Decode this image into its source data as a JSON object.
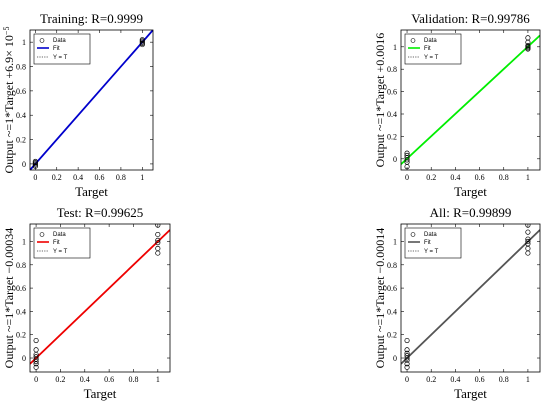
{
  "chart_data": [
    {
      "type": "scatter",
      "title": "Training: R=0.9999",
      "ylabel": "Output ~=1*Target +6.9× 10",
      "ylabel_sup": "−5",
      "xlabel": "Target",
      "xlim": [
        -0.05,
        1.1
      ],
      "ylim": [
        -0.05,
        1.1
      ],
      "xticks": [
        "0",
        "0.2",
        "0.4",
        "0.6",
        "0.8",
        "1"
      ],
      "yticks": [
        "0",
        "0.2",
        "0.4",
        "0.6",
        "0.8",
        "1"
      ],
      "fit_color": "#0000cc",
      "fit": {
        "slope": 1,
        "intercept": 6.9e-05
      },
      "data_points": [
        [
          0,
          0
        ],
        [
          0,
          0.01
        ],
        [
          0,
          -0.01
        ],
        [
          0,
          0.02
        ],
        [
          0,
          -0.02
        ],
        [
          1,
          1
        ],
        [
          1,
          1.01
        ],
        [
          1,
          0.99
        ],
        [
          1,
          1.02
        ],
        [
          1,
          0.98
        ]
      ],
      "legend": [
        "Data",
        "Fit",
        "Y = T"
      ]
    },
    {
      "type": "scatter",
      "title": "Validation: R=0.99786",
      "ylabel": "Output ~=1*Target +0.0016",
      "xlabel": "Target",
      "xlim": [
        -0.05,
        1.1
      ],
      "ylim": [
        -0.1,
        1.15
      ],
      "xticks": [
        "0",
        "0.2",
        "0.4",
        "0.6",
        "0.8",
        "1"
      ],
      "yticks": [
        "0",
        "0.2",
        "0.4",
        "0.6",
        "0.8",
        "1"
      ],
      "fit_color": "#00ee00",
      "fit": {
        "slope": 1,
        "intercept": 0.0016
      },
      "data_points": [
        [
          0,
          0.05
        ],
        [
          0,
          0.03
        ],
        [
          0,
          0.01
        ],
        [
          0,
          -0.01
        ],
        [
          0,
          -0.03
        ],
        [
          0,
          -0.07
        ],
        [
          1,
          1.08
        ],
        [
          1,
          1.04
        ],
        [
          1,
          1.01
        ],
        [
          1,
          1.0
        ],
        [
          1,
          0.99
        ],
        [
          1,
          0.98
        ]
      ],
      "legend": [
        "Data",
        "Fit",
        "Y = T"
      ]
    },
    {
      "type": "scatter",
      "title": "Test: R=0.99625",
      "ylabel": "Output ~=1*Target −0.00034",
      "xlabel": "Target",
      "xlim": [
        -0.05,
        1.1
      ],
      "ylim": [
        -0.12,
        1.15
      ],
      "xticks": [
        "0",
        "0.2",
        "0.4",
        "0.6",
        "0.8",
        "1"
      ],
      "yticks": [
        "0",
        "0.2",
        "0.4",
        "0.6",
        "0.8",
        "1"
      ],
      "fit_color": "#ee0000",
      "fit": {
        "slope": 1,
        "intercept": -0.00034
      },
      "data_points": [
        [
          0,
          0.15
        ],
        [
          0,
          0.07
        ],
        [
          0,
          0.03
        ],
        [
          0,
          0.01
        ],
        [
          0,
          -0.01
        ],
        [
          0,
          -0.03
        ],
        [
          0,
          -0.05
        ],
        [
          0,
          -0.08
        ],
        [
          1,
          1.14
        ],
        [
          1,
          1.06
        ],
        [
          1,
          1.01
        ],
        [
          1,
          0.99
        ],
        [
          1,
          0.94
        ],
        [
          1,
          0.9
        ]
      ],
      "legend": [
        "Data",
        "Fit",
        "Y = T"
      ]
    },
    {
      "type": "scatter",
      "title": "All: R=0.99899",
      "ylabel": "Output ~=1*Target −0.00014",
      "xlabel": "Target",
      "xlim": [
        -0.05,
        1.1
      ],
      "ylim": [
        -0.12,
        1.15
      ],
      "xticks": [
        "0",
        "0.2",
        "0.4",
        "0.6",
        "0.8",
        "1"
      ],
      "yticks": [
        "0",
        "0.2",
        "0.4",
        "0.6",
        "0.8",
        "1"
      ],
      "fit_color": "#555555",
      "fit": {
        "slope": 1,
        "intercept": -0.00014
      },
      "data_points": [
        [
          0,
          0.15
        ],
        [
          0,
          0.07
        ],
        [
          0,
          0.04
        ],
        [
          0,
          0.02
        ],
        [
          0,
          0.0
        ],
        [
          0,
          -0.02
        ],
        [
          0,
          -0.05
        ],
        [
          0,
          -0.08
        ],
        [
          1,
          1.14
        ],
        [
          1,
          1.08
        ],
        [
          1,
          1.02
        ],
        [
          1,
          1.0
        ],
        [
          1,
          0.98
        ],
        [
          1,
          0.94
        ],
        [
          1,
          0.9
        ]
      ],
      "legend": [
        "Data",
        "Fit",
        "Y = T"
      ]
    }
  ]
}
